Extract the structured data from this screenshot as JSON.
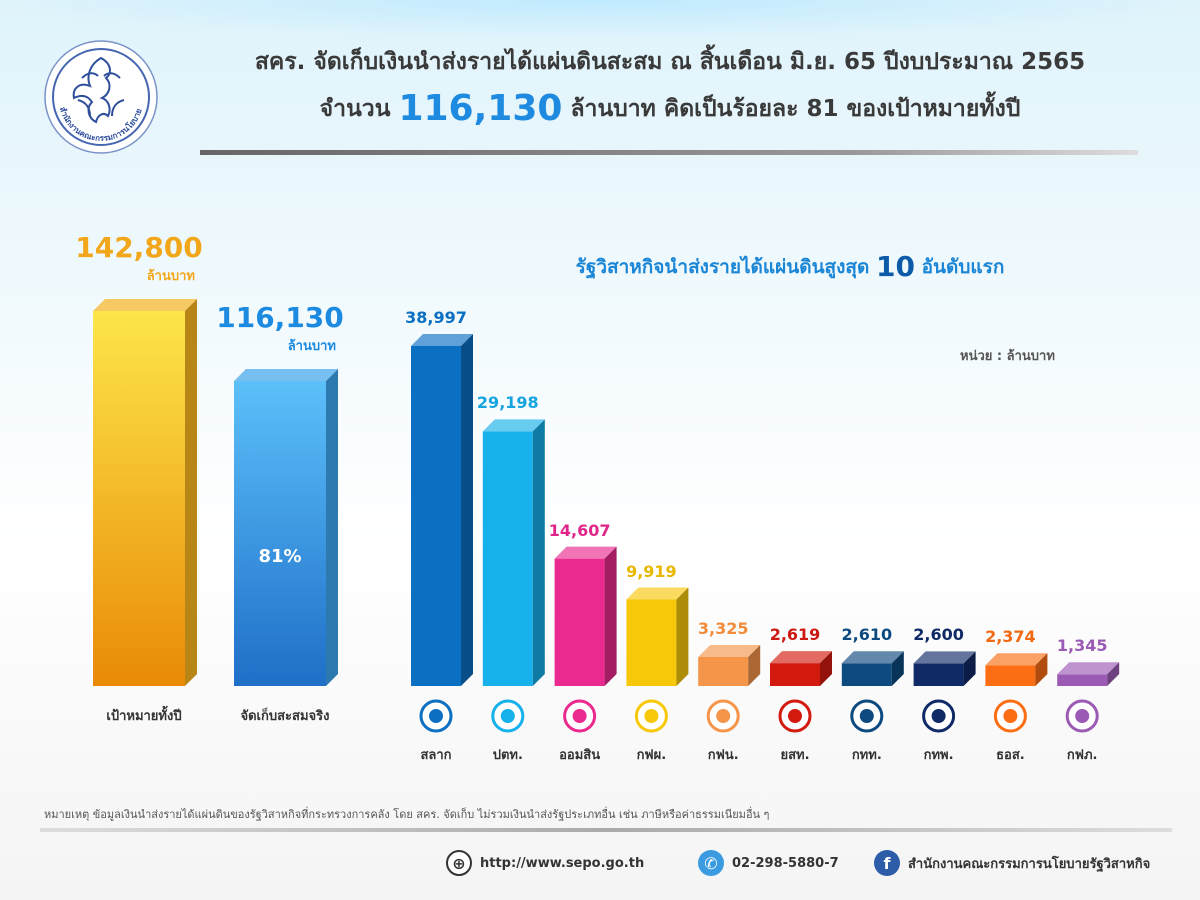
{
  "header": {
    "title_line1": "สคร. จัดเก็บเงินนำส่งรายได้แผ่นดินสะสม ณ สิ้นเดือน มิ.ย. 65 ปีงบประมาณ 2565",
    "title_line2_prefix": "จำนวน",
    "title_line2_amount": "116,130",
    "title_line2_suffix": "ล้านบาท คิดเป็นร้อยละ 81 ของเป้าหมายทั้งปี",
    "logo_text": "สำนักงานคณะกรรมการนโยบายรัฐวิสาหกิจ"
  },
  "chart_data": [
    {
      "type": "bar",
      "categories": [
        "เป้าหมายทั้งปี",
        "จัดเก็บสะสมจริง"
      ],
      "values": [
        142800,
        116130
      ],
      "value_labels": [
        "142,800",
        "116,130"
      ],
      "unit_labels": [
        "ล้านบาท",
        "ล้านบาท"
      ],
      "inner_label": "81%",
      "colors": [
        "#f4b21e",
        "#3ba3ea"
      ]
    },
    {
      "type": "bar",
      "title_prefix": "รัฐวิสาหกิจนำส่งรายได้แผ่นดินสูงสุด",
      "title_number": "10",
      "title_suffix": "อันดับแรก",
      "unit_note": "หน่วย : ล้านบาท",
      "categories": [
        "สลาก",
        "ปตท.",
        "ออมสิน",
        "กฟผ.",
        "กฟน.",
        "ยสท.",
        "กทท.",
        "กทพ.",
        "ธอส.",
        "กฟภ."
      ],
      "values": [
        38997,
        29198,
        14607,
        9919,
        3325,
        2619,
        2610,
        2600,
        2374,
        1345
      ],
      "value_labels": [
        "38,997",
        "29,198",
        "14,607",
        "9,919",
        "3,325",
        "2,619",
        "2,610",
        "2,600",
        "2,374",
        "1,345"
      ],
      "colors": [
        "#0b6fc2",
        "#16b0ea",
        "#ea2a8e",
        "#f7c80a",
        "#f5954a",
        "#d21a0f",
        "#0d4a80",
        "#0f2a66",
        "#fb6e14",
        "#9b5bb5"
      ],
      "label_colors": [
        "#0b6fc2",
        "#16a4e0",
        "#e0268a",
        "#e8b800",
        "#f08c3c",
        "#cc1a12",
        "#0d4a80",
        "#0f2a66",
        "#f26a10",
        "#9b5bb5"
      ]
    }
  ],
  "footnote": "หมายเหตุ ข้อมูลเงินนำส่งรายได้แผ่นดินของรัฐวิสาหกิจที่กระทรวงการคลัง โดย สคร. จัดเก็บ ไม่รวมเงินนำส่งรัฐประเภทอื่น เช่น ภาษีหรือค่าธรรมเนียมอื่น ๆ",
  "footer": {
    "website": "http://www.sepo.go.th",
    "phone": "02-298-5880-7",
    "facebook": "สำนักงานคณะกรรมการนโยบายรัฐวิสาหกิจ"
  }
}
